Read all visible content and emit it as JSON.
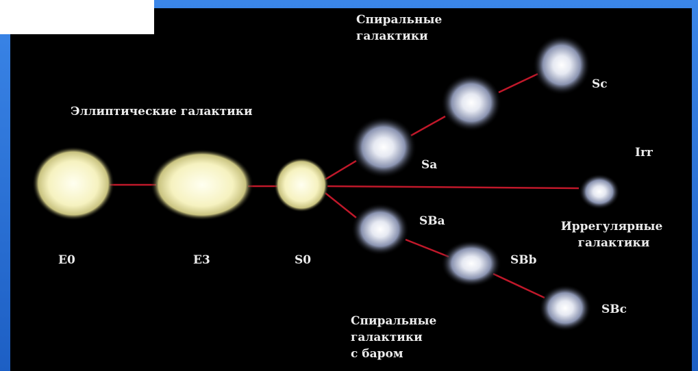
{
  "header": {
    "spiral": [
      "Спиральные",
      "галактики"
    ],
    "elliptical": "Эллиптические галактики",
    "irregular": [
      "Иррегулярные",
      "галактики"
    ],
    "barred": [
      "Спиральные",
      "галактики",
      "с баром"
    ]
  },
  "nodes": [
    {
      "label": "E0"
    },
    {
      "label": "E3"
    },
    {
      "label": "S0"
    },
    {
      "label": "Sa"
    },
    {
      "label": "Sc"
    },
    {
      "label": "Irr"
    },
    {
      "label": "SBa"
    },
    {
      "label": "SBb"
    },
    {
      "label": "SBc"
    }
  ]
}
